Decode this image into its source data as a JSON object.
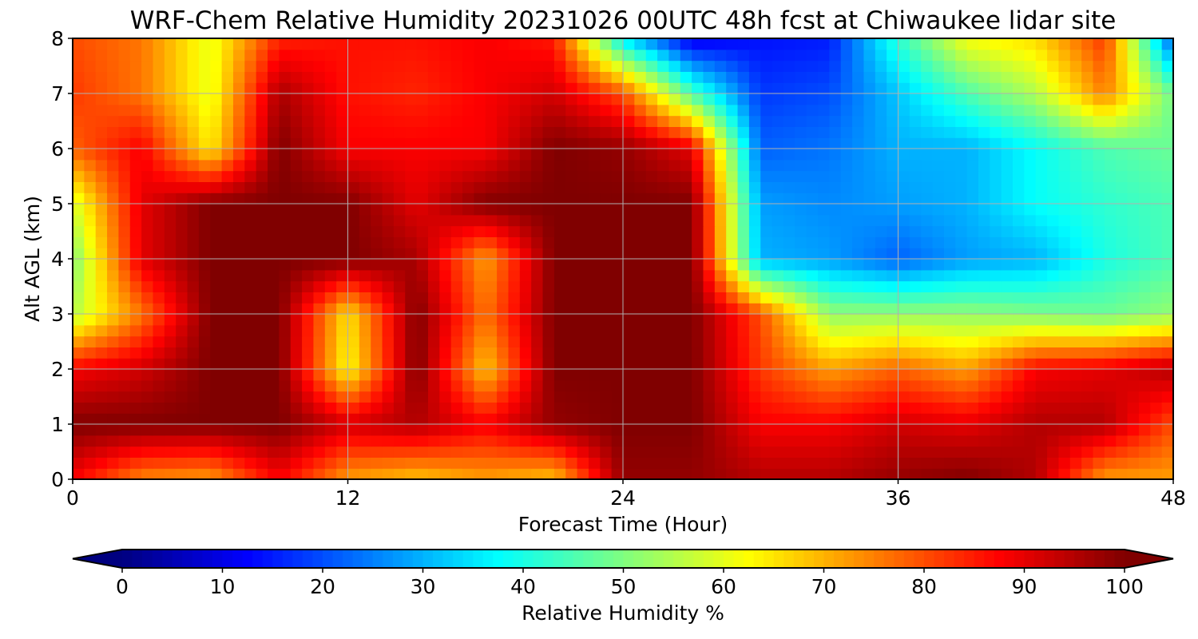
{
  "chart_data": {
    "type": "heatmap",
    "title": "WRF-Chem Relative Humidity 20231026 00UTC 48h fcst at Chiwaukee lidar site",
    "xlabel": "Forecast Time (Hour)",
    "ylabel": "Alt AGL (km)",
    "colorbar_label": "Relative Humidity %",
    "xlim": [
      0,
      48
    ],
    "ylim": [
      0,
      8
    ],
    "x_ticks": [
      0,
      12,
      24,
      36,
      48
    ],
    "y_ticks": [
      0,
      1,
      2,
      3,
      4,
      5,
      6,
      7,
      8
    ],
    "colorbar_ticks": [
      0,
      10,
      20,
      30,
      40,
      50,
      60,
      70,
      80,
      90,
      100
    ],
    "colorbar_range": [
      0,
      100
    ],
    "colormap": "jet",
    "grid": true,
    "x": [
      0,
      3,
      6,
      9,
      12,
      15,
      18,
      21,
      24,
      27,
      30,
      33,
      36,
      39,
      42,
      45,
      48
    ],
    "y": [
      0,
      1,
      2,
      3,
      4,
      5,
      6,
      7,
      8
    ],
    "z": [
      [
        88,
        74,
        72,
        88,
        72,
        68,
        72,
        68,
        98,
        98,
        95,
        95,
        98,
        100,
        95,
        72,
        72
      ],
      [
        100,
        100,
        100,
        100,
        92,
        95,
        88,
        98,
        100,
        100,
        88,
        88,
        92,
        90,
        95,
        95,
        80
      ],
      [
        88,
        92,
        100,
        100,
        62,
        100,
        68,
        100,
        100,
        100,
        82,
        72,
        78,
        72,
        88,
        90,
        95
      ],
      [
        55,
        76,
        100,
        100,
        65,
        100,
        76,
        100,
        100,
        100,
        80,
        52,
        52,
        52,
        50,
        48,
        52
      ],
      [
        50,
        90,
        100,
        100,
        100,
        96,
        72,
        100,
        100,
        100,
        30,
        28,
        22,
        28,
        30,
        40,
        45
      ],
      [
        58,
        90,
        100,
        100,
        100,
        90,
        100,
        100,
        100,
        100,
        28,
        26,
        28,
        30,
        38,
        42,
        45
      ],
      [
        78,
        88,
        64,
        100,
        88,
        88,
        88,
        100,
        98,
        90,
        22,
        24,
        30,
        30,
        38,
        45,
        48
      ],
      [
        82,
        76,
        60,
        96,
        86,
        84,
        88,
        92,
        80,
        45,
        18,
        20,
        32,
        45,
        55,
        75,
        48
      ],
      [
        80,
        76,
        60,
        84,
        86,
        86,
        88,
        85,
        35,
        10,
        14,
        15,
        42,
        62,
        66,
        82,
        20
      ]
    ]
  }
}
